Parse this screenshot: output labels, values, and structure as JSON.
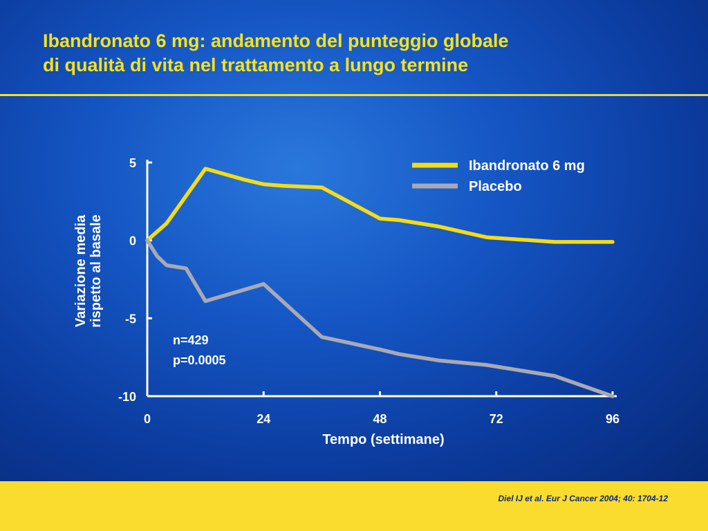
{
  "slide": {
    "title_line1": "Ibandronato 6 mg: andamento del punteggio globale",
    "title_line2": "di qualità di vita nel trattamento a lungo termine",
    "citation": "Diel IJ et al. Eur J Cancer 2004; 40: 1704-12"
  },
  "colors": {
    "title": "#f7e21a",
    "footer": "#fadc2e",
    "background": "#1556c4"
  },
  "chart_data": {
    "type": "line",
    "title": "",
    "xlabel": "Tempo (settimane)",
    "ylabel_line1": "Variazione media",
    "ylabel_line2": "rispetto al basale",
    "xlim": [
      0,
      96
    ],
    "ylim": [
      -10,
      5
    ],
    "x_ticks": [
      0,
      24,
      48,
      72,
      96
    ],
    "y_ticks": [
      5,
      0,
      -5,
      -10
    ],
    "grid": false,
    "legend_position": "top-right",
    "annotations": [
      "n=429",
      "p=0.0005"
    ],
    "series": [
      {
        "name": "Ibandronato 6 mg",
        "color": "#f5dc14",
        "x": [
          0,
          4,
          12,
          20,
          24,
          28,
          36,
          48,
          52,
          60,
          70,
          84,
          96
        ],
        "y": [
          0,
          1.1,
          4.6,
          3.9,
          3.6,
          3.5,
          3.4,
          1.4,
          1.3,
          0.9,
          0.2,
          -0.1,
          -0.1
        ]
      },
      {
        "name": "Placebo",
        "color": "#a9a9b4",
        "x": [
          0,
          2,
          4,
          8,
          12,
          24,
          36,
          48,
          52,
          60,
          70,
          76,
          84,
          96
        ],
        "y": [
          0,
          -1.0,
          -1.6,
          -1.8,
          -3.9,
          -2.8,
          -6.2,
          -7.0,
          -7.3,
          -7.7,
          -8.0,
          -8.3,
          -8.7,
          -10.0
        ]
      }
    ]
  }
}
